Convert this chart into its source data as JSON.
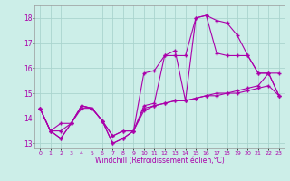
{
  "xlabel": "Windchill (Refroidissement éolien,°C)",
  "bg_color": "#cceee8",
  "grid_color": "#aad4ce",
  "line_color": "#aa00aa",
  "x_hours": [
    0,
    1,
    2,
    3,
    4,
    5,
    6,
    7,
    8,
    9,
    10,
    11,
    12,
    13,
    14,
    15,
    16,
    17,
    18,
    19,
    20,
    21,
    22,
    23
  ],
  "series1": [
    14.4,
    13.5,
    13.2,
    13.8,
    14.5,
    14.4,
    13.9,
    13.0,
    13.2,
    13.5,
    15.8,
    15.9,
    16.5,
    16.7,
    14.7,
    18.0,
    18.1,
    17.9,
    17.8,
    17.3,
    16.5,
    15.8,
    15.8,
    14.9
  ],
  "series2": [
    14.4,
    13.5,
    13.8,
    13.8,
    14.4,
    14.4,
    13.9,
    13.3,
    13.5,
    13.5,
    14.4,
    14.5,
    14.6,
    14.7,
    14.7,
    14.8,
    14.9,
    15.0,
    15.0,
    15.1,
    15.2,
    15.3,
    15.8,
    15.8
  ],
  "series3": [
    14.4,
    13.5,
    13.5,
    13.8,
    14.5,
    14.4,
    13.9,
    13.3,
    13.5,
    13.5,
    14.3,
    14.5,
    14.6,
    14.7,
    14.7,
    14.8,
    14.9,
    14.9,
    15.0,
    15.0,
    15.1,
    15.2,
    15.3,
    14.9
  ],
  "series4": [
    14.4,
    13.5,
    13.2,
    13.8,
    14.5,
    14.4,
    13.9,
    13.0,
    13.2,
    13.5,
    14.5,
    14.6,
    16.5,
    16.5,
    16.5,
    18.0,
    18.1,
    16.6,
    16.5,
    16.5,
    16.5,
    15.8,
    15.8,
    14.9
  ],
  "ylim": [
    12.8,
    18.5
  ],
  "yticks": [
    13,
    14,
    15,
    16,
    17,
    18
  ],
  "xticks": [
    0,
    1,
    2,
    3,
    4,
    5,
    6,
    7,
    8,
    9,
    10,
    11,
    12,
    13,
    14,
    15,
    16,
    17,
    18,
    19,
    20,
    21,
    22,
    23
  ]
}
